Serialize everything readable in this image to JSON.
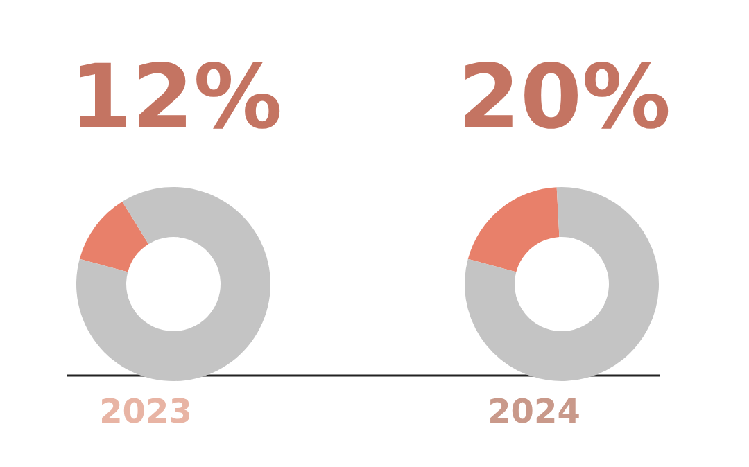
{
  "chart_data": [
    {
      "type": "donut",
      "title": "2023",
      "categories": [
        null,
        null
      ],
      "values": [
        12,
        88
      ],
      "colors": [
        "#e8806a",
        "#c4c4c4"
      ],
      "value_labels": [
        "12%",
        null
      ]
    },
    {
      "type": "donut",
      "title": "2024",
      "categories": [
        null,
        null
      ],
      "values": [
        20,
        80
      ],
      "colors": [
        "#e8806a",
        "#c4c4c4"
      ],
      "value_labels": [
        "20%",
        null
      ]
    }
  ]
}
